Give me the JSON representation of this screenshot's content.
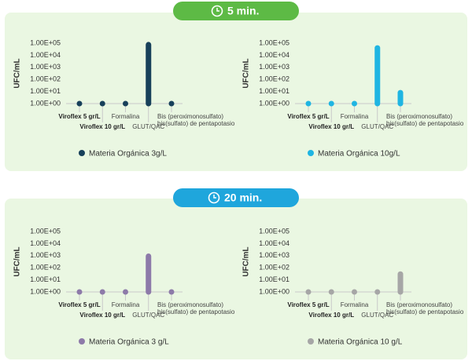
{
  "panels": [
    {
      "badge": "5 min."
    },
    {
      "badge": "20 min."
    }
  ],
  "chart_data": [
    {
      "type": "bar",
      "y_label": "UFC/mL",
      "log_scale": true,
      "categories": [
        "Viroflex 5 gr/L",
        "Viroflex 10 gr/L",
        "Formalina",
        "GLUT/QAC",
        "Bis (peroximonosulfato) bis(sulfato) de pentapotasio"
      ],
      "series": [
        {
          "name": "Materia Orgánica 3g/L",
          "color": "#17405a",
          "values": [
            1,
            1,
            1,
            75000,
            1
          ]
        }
      ],
      "ylim": [
        1,
        100000
      ],
      "yticks": [
        {
          "value": 1,
          "label": "1.00E+00"
        },
        {
          "value": 10,
          "label": "1.00E+01"
        },
        {
          "value": 100,
          "label": "1.00E+02"
        },
        {
          "value": 1000,
          "label": "1.00E+03"
        },
        {
          "value": 10000,
          "label": "1.00E+04"
        },
        {
          "value": 100000,
          "label": "1.00E+05"
        }
      ]
    },
    {
      "type": "bar",
      "y_label": "UFC/mL",
      "log_scale": true,
      "categories": [
        "Viroflex 5 gr/L",
        "Viroflex 10 gr/L",
        "Formalina",
        "GLUT/QAC",
        "Bis (peroximonosulfato) bis(sulfato) de pentapotasio"
      ],
      "series": [
        {
          "name": "Materia Orgánica 10g/L",
          "color": "#1fb5e2",
          "values": [
            1,
            1,
            1,
            40000,
            8
          ]
        }
      ],
      "ylim": [
        1,
        100000
      ],
      "yticks": [
        {
          "value": 1,
          "label": "1.00E+00"
        },
        {
          "value": 10,
          "label": "1.00E+01"
        },
        {
          "value": 100,
          "label": "1.00E+02"
        },
        {
          "value": 1000,
          "label": "1.00E+03"
        },
        {
          "value": 10000,
          "label": "1.00E+04"
        },
        {
          "value": 100000,
          "label": "1.00E+05"
        }
      ]
    },
    {
      "type": "bar",
      "y_label": "UFC/mL",
      "log_scale": true,
      "categories": [
        "Viroflex 5 gr/L",
        "Viroflex 10 gr/L",
        "Formalina",
        "GLUT/QAC",
        "Bis (peroximonosulfato) bis(sulfato) de pentapotasio"
      ],
      "series": [
        {
          "name": "Materia Orgánica 3 g/L",
          "color": "#8d7aa9",
          "values": [
            1,
            1,
            1,
            900,
            1
          ]
        }
      ],
      "ylim": [
        1,
        100000
      ],
      "yticks": [
        {
          "value": 1,
          "label": "1.00E+00"
        },
        {
          "value": 10,
          "label": "1.00E+01"
        },
        {
          "value": 100,
          "label": "1.00E+02"
        },
        {
          "value": 1000,
          "label": "1.00E+03"
        },
        {
          "value": 10000,
          "label": "1.00E+04"
        },
        {
          "value": 100000,
          "label": "1.00E+05"
        }
      ]
    },
    {
      "type": "bar",
      "y_label": "UFC/mL",
      "log_scale": true,
      "categories": [
        "Viroflex 5 gr/L",
        "Viroflex 10 gr/L",
        "Formalina",
        "GLUT/QAC",
        "Bis (peroximonosulfato) bis(sulfato) de pentapotasio"
      ],
      "series": [
        {
          "name": "Materia Orgánica 10 g/L",
          "color": "#a6a6a6",
          "values": [
            1,
            1,
            1,
            1,
            30
          ]
        }
      ],
      "ylim": [
        1,
        100000
      ],
      "yticks": [
        {
          "value": 1,
          "label": "1.00E+00"
        },
        {
          "value": 10,
          "label": "1.00E+01"
        },
        {
          "value": 100,
          "label": "1.00E+02"
        },
        {
          "value": 1000,
          "label": "1.00E+03"
        },
        {
          "value": 10000,
          "label": "1.00E+04"
        },
        {
          "value": 100000,
          "label": "1.00E+05"
        }
      ]
    }
  ]
}
